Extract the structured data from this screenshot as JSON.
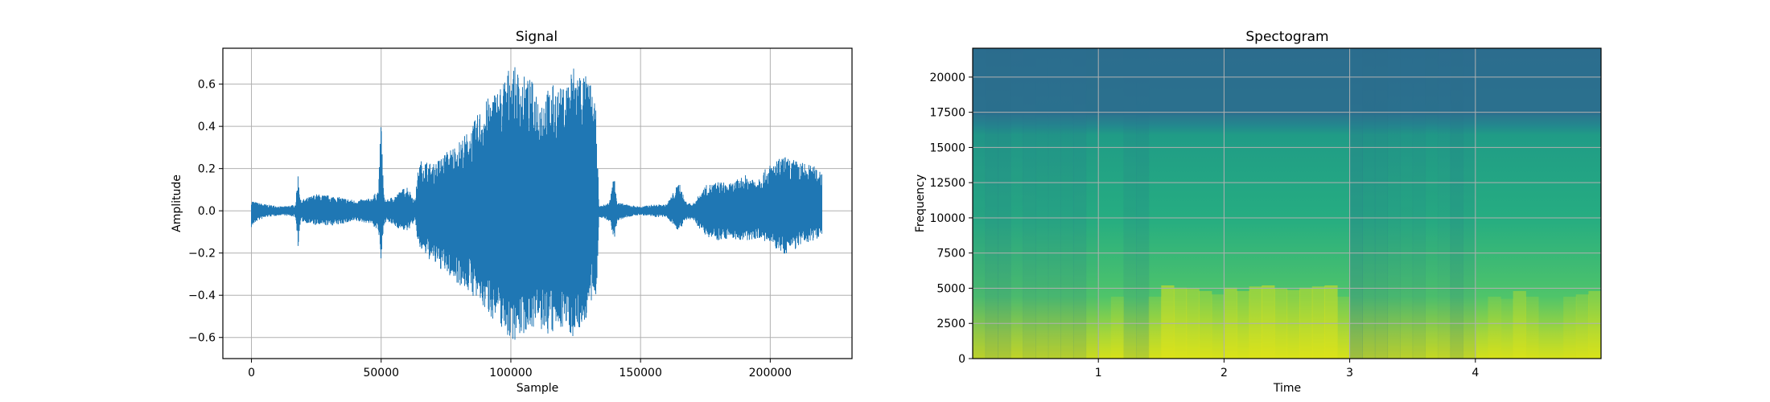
{
  "chart_data": [
    {
      "type": "line",
      "title": "Signal",
      "xlabel": "Sample",
      "ylabel": "Amplitude",
      "xlim": [
        -11025,
        231525
      ],
      "ylim": [
        -0.7,
        0.77
      ],
      "xticks": [
        0,
        50000,
        100000,
        150000,
        200000
      ],
      "yticks": [
        -0.6,
        -0.4,
        -0.2,
        0.0,
        0.2,
        0.4,
        0.6
      ],
      "grid": true,
      "color": "#1f77b4",
      "series": [
        {
          "envelope_x": [
            0,
            2000,
            6000,
            12000,
            17000,
            18000,
            19000,
            25000,
            32000,
            40000,
            46000,
            49000,
            50000,
            51000,
            52000,
            56000,
            60000,
            63000,
            64500,
            66000,
            70000,
            75000,
            80000,
            85000,
            88000,
            92000,
            96000,
            100000,
            104000,
            108000,
            112000,
            116000,
            120000,
            124000,
            128000,
            131000,
            133000,
            134000,
            138000,
            140000,
            141000,
            145000,
            150000,
            155000,
            160000,
            165000,
            167000,
            170000,
            175000,
            180000,
            185000,
            190000,
            195000,
            200000,
            205000,
            210000,
            215000,
            220000
          ],
          "envelope_upper": [
            0.05,
            0.04,
            0.03,
            0.02,
            0.03,
            0.18,
            0.05,
            0.08,
            0.07,
            0.05,
            0.06,
            0.1,
            0.45,
            0.08,
            0.05,
            0.08,
            0.12,
            0.05,
            0.22,
            0.25,
            0.22,
            0.28,
            0.33,
            0.4,
            0.48,
            0.55,
            0.6,
            0.7,
            0.65,
            0.62,
            0.55,
            0.6,
            0.58,
            0.7,
            0.66,
            0.6,
            0.46,
            0.02,
            0.04,
            0.19,
            0.04,
            0.03,
            0.02,
            0.03,
            0.03,
            0.14,
            0.05,
            0.03,
            0.12,
            0.14,
            0.13,
            0.17,
            0.16,
            0.22,
            0.26,
            0.24,
            0.22,
            0.2
          ],
          "envelope_lower": [
            -0.08,
            -0.05,
            -0.03,
            -0.02,
            -0.03,
            -0.17,
            -0.05,
            -0.07,
            -0.07,
            -0.05,
            -0.06,
            -0.1,
            -0.27,
            -0.07,
            -0.05,
            -0.08,
            -0.1,
            -0.05,
            -0.18,
            -0.2,
            -0.25,
            -0.3,
            -0.35,
            -0.4,
            -0.45,
            -0.5,
            -0.55,
            -0.62,
            -0.6,
            -0.55,
            -0.58,
            -0.6,
            -0.55,
            -0.6,
            -0.55,
            -0.45,
            -0.42,
            -0.03,
            -0.05,
            -0.14,
            -0.05,
            -0.03,
            -0.02,
            -0.03,
            -0.03,
            -0.1,
            -0.05,
            -0.04,
            -0.12,
            -0.14,
            -0.13,
            -0.15,
            -0.13,
            -0.16,
            -0.21,
            -0.18,
            -0.15,
            -0.12
          ]
        }
      ]
    },
    {
      "type": "heatmap",
      "title": "Spectogram",
      "xlabel": "Time",
      "ylabel": "Frequency",
      "xlim": [
        0,
        5
      ],
      "ylim": [
        0,
        22050
      ],
      "xticks": [
        1,
        2,
        3,
        4
      ],
      "yticks": [
        0,
        2500,
        5000,
        7500,
        10000,
        12500,
        15000,
        17500,
        20000
      ],
      "grid": true,
      "colormap": "viridis",
      "time_activity": [
        0.5,
        0.35,
        0.35,
        0.55,
        0.4,
        0.45,
        0.45,
        0.45,
        0.4,
        0.65,
        0.75,
        0.9,
        0.5,
        0.45,
        0.9,
        1.0,
        0.98,
        0.97,
        0.95,
        0.92,
        0.98,
        0.95,
        0.99,
        1.0,
        0.97,
        0.96,
        0.98,
        0.99,
        1.0,
        0.9,
        0.2,
        0.35,
        0.35,
        0.45,
        0.5,
        0.45,
        0.6,
        0.55,
        0.35,
        0.55,
        0.85,
        0.9,
        0.88,
        0.95,
        0.9,
        0.85,
        0.8,
        0.9,
        0.92,
        0.95
      ]
    }
  ]
}
